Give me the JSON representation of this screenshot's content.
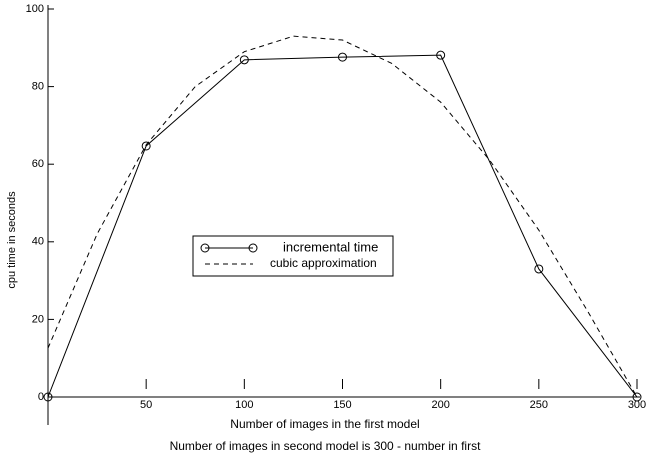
{
  "chart_data": {
    "type": "line",
    "xlabel": "Number of images in the first model",
    "xlabel2": "Number of images in second model is 300 - number in first",
    "ylabel": "cpu time in seconds",
    "xlim": [
      0,
      300
    ],
    "ylim": [
      0,
      100
    ],
    "xticks": [
      50,
      100,
      150,
      200,
      250,
      300
    ],
    "yticks": [
      0,
      20,
      40,
      60,
      80,
      100
    ],
    "series": [
      {
        "name": "incremental time",
        "color": "#000000",
        "dashed": false,
        "marker": "circle",
        "x": [
          0,
          50,
          100,
          150,
          200,
          250,
          300
        ],
        "values": [
          0,
          64.7,
          86.9,
          87.6,
          88.1,
          33,
          0
        ]
      },
      {
        "name": "cubic approximation",
        "color": "#000000",
        "dashed": true,
        "marker": null,
        "x": [
          0,
          25,
          50,
          75,
          100,
          125,
          150,
          175,
          200,
          225,
          250,
          275,
          300
        ],
        "values": [
          12.6,
          42,
          65,
          80,
          89,
          93,
          92,
          86,
          76,
          61,
          43,
          22,
          0
        ]
      }
    ]
  }
}
